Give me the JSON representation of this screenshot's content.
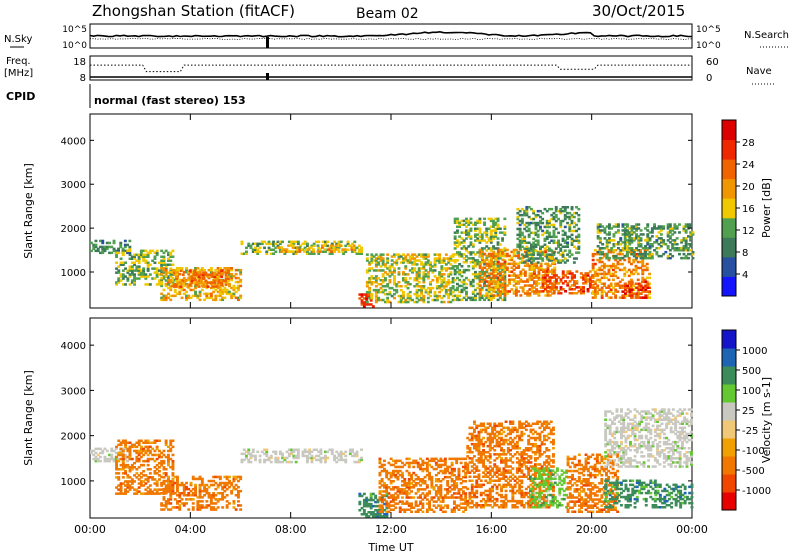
{
  "header": {
    "station": "Zhongshan Station (fitACF)",
    "beam": "Beam 02",
    "date": "30/Oct/2015"
  },
  "info_panel": {
    "nsky_label": "N.Sky",
    "nsky_ticks": [
      "10^5",
      "10^0"
    ],
    "nsearch_label": "N.Search",
    "nsearch_ticks": [
      "10^5",
      "10^0"
    ],
    "freq_label": "Freq.",
    "freq_unit": "[MHz]",
    "freq_ticks": [
      "18",
      "8"
    ],
    "nave_label": "Nave",
    "nave_ticks": [
      "60",
      "0"
    ],
    "cpid_label": "CPID",
    "cpid_text": "normal (fast stereo) 153"
  },
  "colors": {
    "power": [
      "#1414ff",
      "#2850a0",
      "#3c7a5a",
      "#50a050",
      "#f0c800",
      "#f09600",
      "#f06400",
      "#f02800",
      "#dc0000"
    ],
    "velocity": [
      "#e60000",
      "#f04600",
      "#f07800",
      "#f0a000",
      "#f0c878",
      "#c8c8c0",
      "#64c832",
      "#3c8c5a",
      "#1e64b4",
      "#1414c8"
    ]
  },
  "chart_data": [
    {
      "type": "heatmap",
      "title": "Power",
      "ylabel": "Slant Range [km]",
      "xlabel": "",
      "ylim": [
        180,
        4600
      ],
      "yticks": [
        1000,
        2000,
        3000,
        4000
      ],
      "xticks": [
        "00:00",
        "04:00",
        "08:00",
        "12:00",
        "16:00",
        "20:00",
        "00:00"
      ],
      "colorbar": {
        "label": "Power [dB]",
        "ticks": [
          "4",
          "8",
          "12",
          "16",
          "20",
          "24",
          "28"
        ],
        "range": [
          0,
          30
        ]
      },
      "scatter_regions": [
        {
          "t0": 0.0,
          "t1": 1.6,
          "r0": 1420,
          "r1": 1700,
          "v": 9
        },
        {
          "t0": 1.0,
          "t1": 3.3,
          "r0": 700,
          "r1": 1500,
          "v": 12
        },
        {
          "t0": 2.8,
          "t1": 6.0,
          "r0": 350,
          "r1": 1100,
          "v": 17
        },
        {
          "t0": 3.3,
          "t1": 5.5,
          "r0": 650,
          "r1": 1050,
          "v": 21
        },
        {
          "t0": 6.0,
          "t1": 10.8,
          "r0": 1400,
          "r1": 1700,
          "v": 12
        },
        {
          "t0": 7.5,
          "t1": 10.5,
          "r0": 1450,
          "r1": 1600,
          "v": 17
        },
        {
          "t0": 10.7,
          "t1": 11.3,
          "r0": 200,
          "r1": 500,
          "v": 26
        },
        {
          "t0": 11.0,
          "t1": 14.5,
          "r0": 300,
          "r1": 1400,
          "v": 14
        },
        {
          "t0": 14.5,
          "t1": 16.5,
          "r0": 350,
          "r1": 2200,
          "v": 12
        },
        {
          "t0": 15.5,
          "t1": 18.5,
          "r0": 450,
          "r1": 1500,
          "v": 20
        },
        {
          "t0": 17.0,
          "t1": 19.5,
          "r0": 1200,
          "r1": 2500,
          "v": 10
        },
        {
          "t0": 18.0,
          "t1": 20.0,
          "r0": 500,
          "r1": 1000,
          "v": 24
        },
        {
          "t0": 20.0,
          "t1": 22.3,
          "r0": 400,
          "r1": 1500,
          "v": 20
        },
        {
          "t0": 21.2,
          "t1": 22.2,
          "r0": 400,
          "r1": 800,
          "v": 26
        },
        {
          "t0": 20.2,
          "t1": 24.0,
          "r0": 1300,
          "r1": 2100,
          "v": 10
        }
      ]
    },
    {
      "type": "heatmap",
      "title": "Velocity",
      "ylabel": "Slant Range [km]",
      "xlabel": "Time UT",
      "ylim": [
        180,
        4600
      ],
      "yticks": [
        1000,
        2000,
        3000,
        4000
      ],
      "xticks": [
        "00:00",
        "04:00",
        "08:00",
        "12:00",
        "16:00",
        "20:00",
        "00:00"
      ],
      "colorbar": {
        "label": "Velocity [m s-1]",
        "ticks": [
          "1000",
          "500",
          "100",
          "25",
          "-25",
          "-100",
          "-500",
          "-1000"
        ]
      },
      "scatter_regions": [
        {
          "t0": 0.0,
          "t1": 1.6,
          "r0": 1420,
          "r1": 1700,
          "c": 5
        },
        {
          "t0": 1.0,
          "t1": 3.3,
          "r0": 700,
          "r1": 1900,
          "c": 2
        },
        {
          "t0": 2.8,
          "t1": 6.0,
          "r0": 350,
          "r1": 1100,
          "c": 2
        },
        {
          "t0": 6.0,
          "t1": 10.8,
          "r0": 1400,
          "r1": 1700,
          "c": 5
        },
        {
          "t0": 10.7,
          "t1": 11.8,
          "r0": 200,
          "r1": 700,
          "c": 7
        },
        {
          "t0": 11.5,
          "t1": 15.0,
          "r0": 300,
          "r1": 1500,
          "c": 2
        },
        {
          "t0": 15.0,
          "t1": 18.5,
          "r0": 400,
          "r1": 2300,
          "c": 2
        },
        {
          "t0": 17.5,
          "t1": 19.0,
          "r0": 400,
          "r1": 1300,
          "c": 6
        },
        {
          "t0": 19.0,
          "t1": 21.0,
          "r0": 300,
          "r1": 1600,
          "c": 2
        },
        {
          "t0": 20.5,
          "t1": 22.5,
          "r0": 400,
          "r1": 1000,
          "c": 7
        },
        {
          "t0": 20.5,
          "t1": 24.0,
          "r0": 1300,
          "r1": 2600,
          "c": 5
        },
        {
          "t0": 22.5,
          "t1": 24.0,
          "r0": 400,
          "r1": 900,
          "c": 7
        }
      ]
    }
  ]
}
